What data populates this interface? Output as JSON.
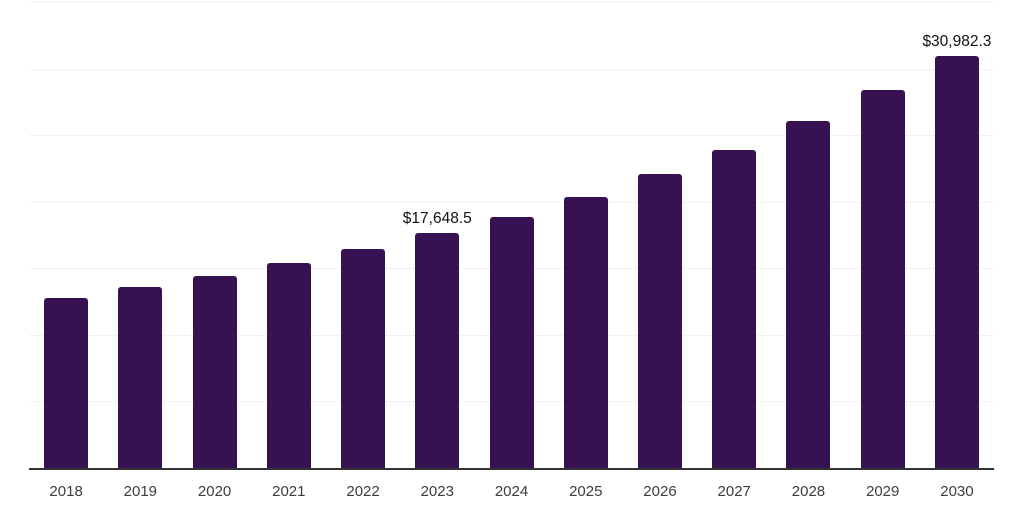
{
  "page": {
    "background": "#ffffff"
  },
  "chart_data": {
    "type": "bar",
    "title": "",
    "xlabel": "",
    "ylabel": "",
    "categories": [
      "2018",
      "2019",
      "2020",
      "2021",
      "2022",
      "2023",
      "2024",
      "2025",
      "2026",
      "2027",
      "2028",
      "2029",
      "2030"
    ],
    "values": [
      12800,
      13620,
      14400,
      15400,
      16480,
      17648.5,
      18880,
      20350,
      22060,
      23870,
      26030,
      28370,
      30982.3
    ],
    "point_labels": [
      "",
      "",
      "",
      "",
      "",
      "$17,648.5",
      "",
      "",
      "",
      "",
      "",
      "",
      "$30,982.3"
    ],
    "ylim": [
      0,
      35000
    ],
    "gridline_step": 5000,
    "grid": "horizontal-only",
    "y_axis_labels_visible": false,
    "legend_position": "none",
    "colors": {
      "bar": "#371252",
      "axis_line": "#333333",
      "gridline": "#f2f2f2",
      "point_label": "#111111",
      "tick_label": "#3d3d3d"
    }
  }
}
